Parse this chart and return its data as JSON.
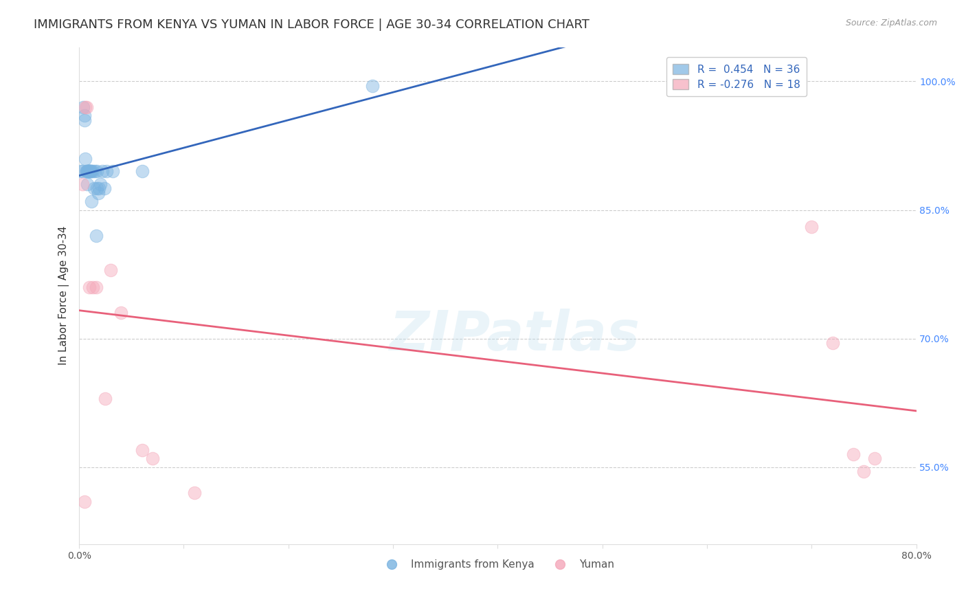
{
  "title": "IMMIGRANTS FROM KENYA VS YUMAN IN LABOR FORCE | AGE 30-34 CORRELATION CHART",
  "source": "Source: ZipAtlas.com",
  "ylabel": "In Labor Force | Age 30-34",
  "xlim": [
    0.0,
    0.8
  ],
  "ylim": [
    0.46,
    1.04
  ],
  "right_yticks": [
    1.0,
    0.85,
    0.7,
    0.55
  ],
  "right_yticklabels": [
    "100.0%",
    "85.0%",
    "70.0%",
    "55.0%"
  ],
  "xticks": [
    0.0,
    0.1,
    0.2,
    0.3,
    0.4,
    0.5,
    0.6,
    0.7,
    0.8
  ],
  "xticklabels": [
    "0.0%",
    "",
    "",
    "",
    "",
    "",
    "",
    "",
    "80.0%"
  ],
  "legend_kenya": "R =  0.454   N = 36",
  "legend_yuman": "R = -0.276   N = 18",
  "watermark": "ZIPatlas",
  "kenya_color": "#7ab3e0",
  "yuman_color": "#f4a7b9",
  "kenya_line_color": "#3366bb",
  "yuman_line_color": "#e8607a",
  "kenya_scatter": {
    "x": [
      0.001,
      0.003,
      0.004,
      0.005,
      0.005,
      0.006,
      0.007,
      0.007,
      0.008,
      0.008,
      0.009,
      0.009,
      0.009,
      0.009,
      0.01,
      0.01,
      0.01,
      0.011,
      0.011,
      0.012,
      0.012,
      0.013,
      0.014,
      0.015,
      0.016,
      0.017,
      0.017,
      0.018,
      0.019,
      0.02,
      0.022,
      0.024,
      0.026,
      0.032,
      0.06,
      0.28
    ],
    "y": [
      0.895,
      0.895,
      0.97,
      0.955,
      0.96,
      0.91,
      0.895,
      0.895,
      0.895,
      0.88,
      0.895,
      0.895,
      0.895,
      0.895,
      0.895,
      0.895,
      0.895,
      0.895,
      0.895,
      0.895,
      0.86,
      0.895,
      0.875,
      0.895,
      0.82,
      0.875,
      0.895,
      0.87,
      0.875,
      0.88,
      0.895,
      0.875,
      0.895,
      0.895,
      0.895,
      0.995
    ]
  },
  "yuman_scatter": {
    "x": [
      0.003,
      0.005,
      0.006,
      0.007,
      0.01,
      0.013,
      0.016,
      0.025,
      0.03,
      0.04,
      0.06,
      0.07,
      0.11,
      0.7,
      0.72,
      0.74,
      0.75,
      0.76
    ],
    "y": [
      0.88,
      0.51,
      0.97,
      0.97,
      0.76,
      0.76,
      0.76,
      0.63,
      0.78,
      0.73,
      0.57,
      0.56,
      0.52,
      0.83,
      0.695,
      0.565,
      0.545,
      0.56
    ]
  },
  "background_color": "#ffffff",
  "grid_color": "#cccccc",
  "title_fontsize": 13,
  "axis_label_fontsize": 11,
  "tick_fontsize": 10,
  "marker_size": 180,
  "marker_alpha": 0.45
}
